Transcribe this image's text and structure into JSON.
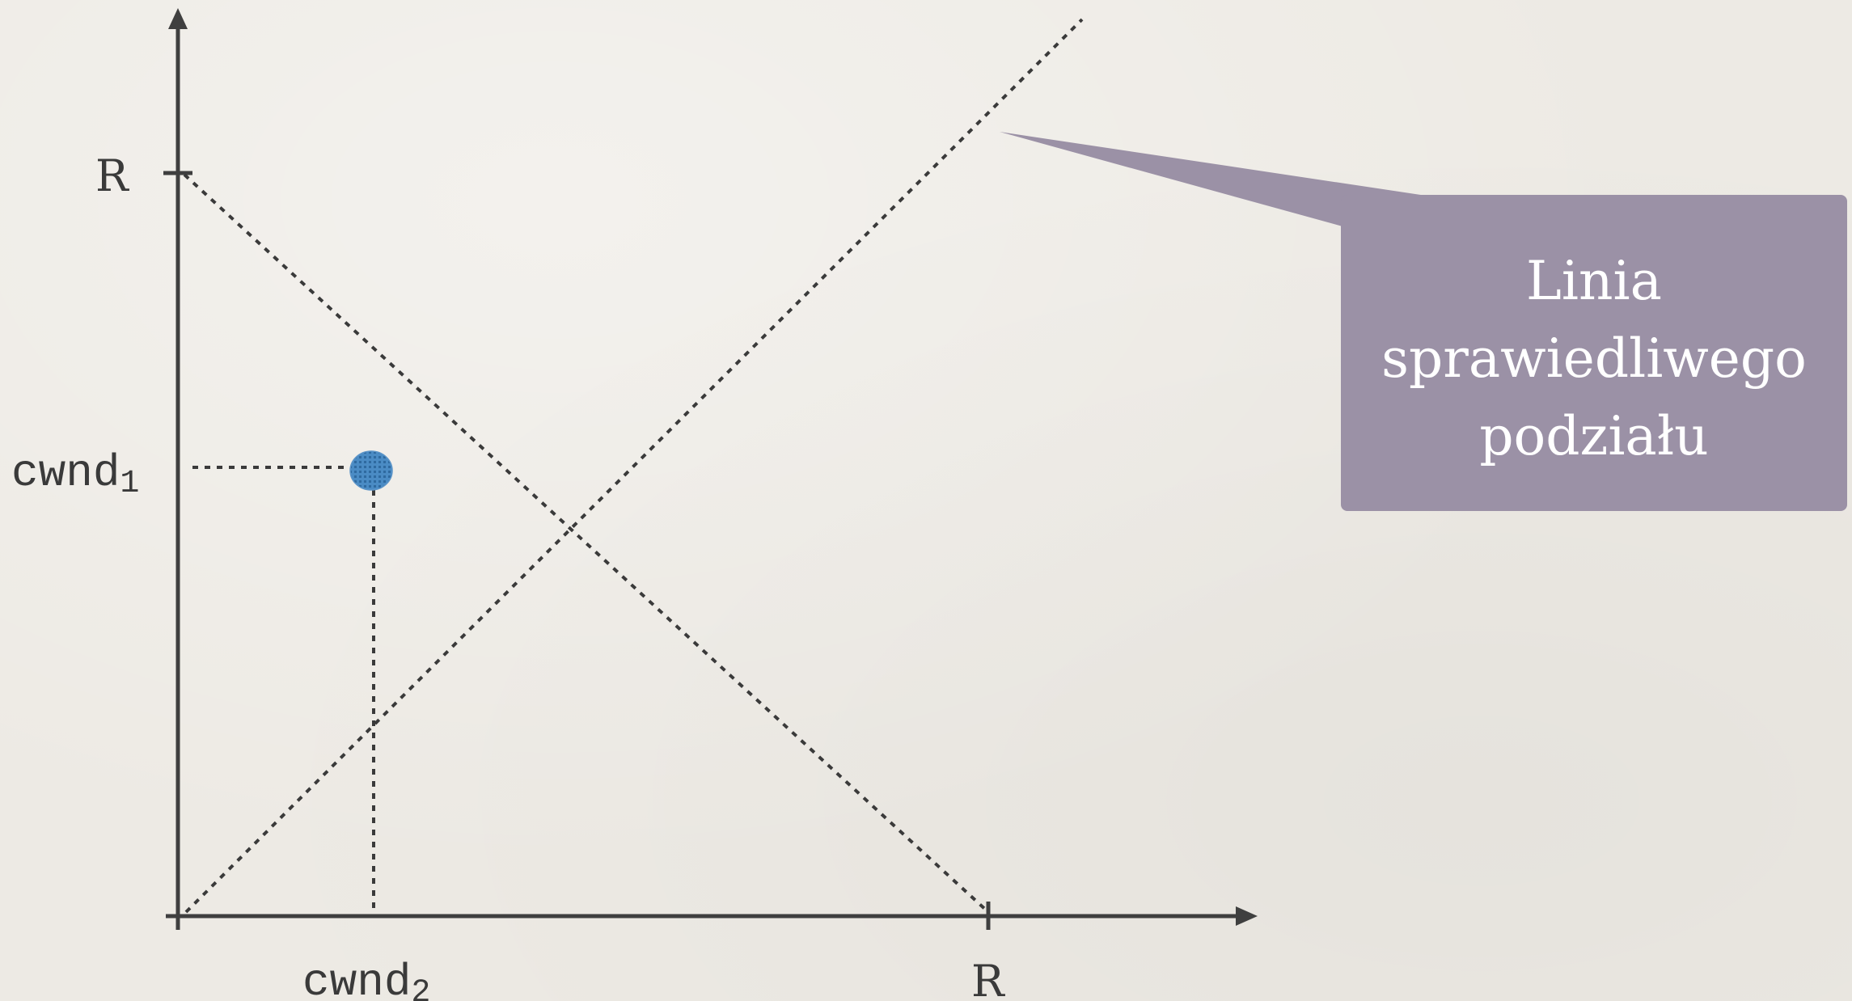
{
  "axes": {
    "y_tick_label": "R",
    "x_tick_label": "R"
  },
  "point": {
    "y_label_base": "cwnd",
    "y_label_sub": "1",
    "x_label_base": "cwnd",
    "x_label_sub": "2",
    "color": "#3d7fb8"
  },
  "callout": {
    "lines": [
      "Linia",
      "sprawiedliwego",
      "podziału"
    ],
    "color": "#9b91a6"
  }
}
